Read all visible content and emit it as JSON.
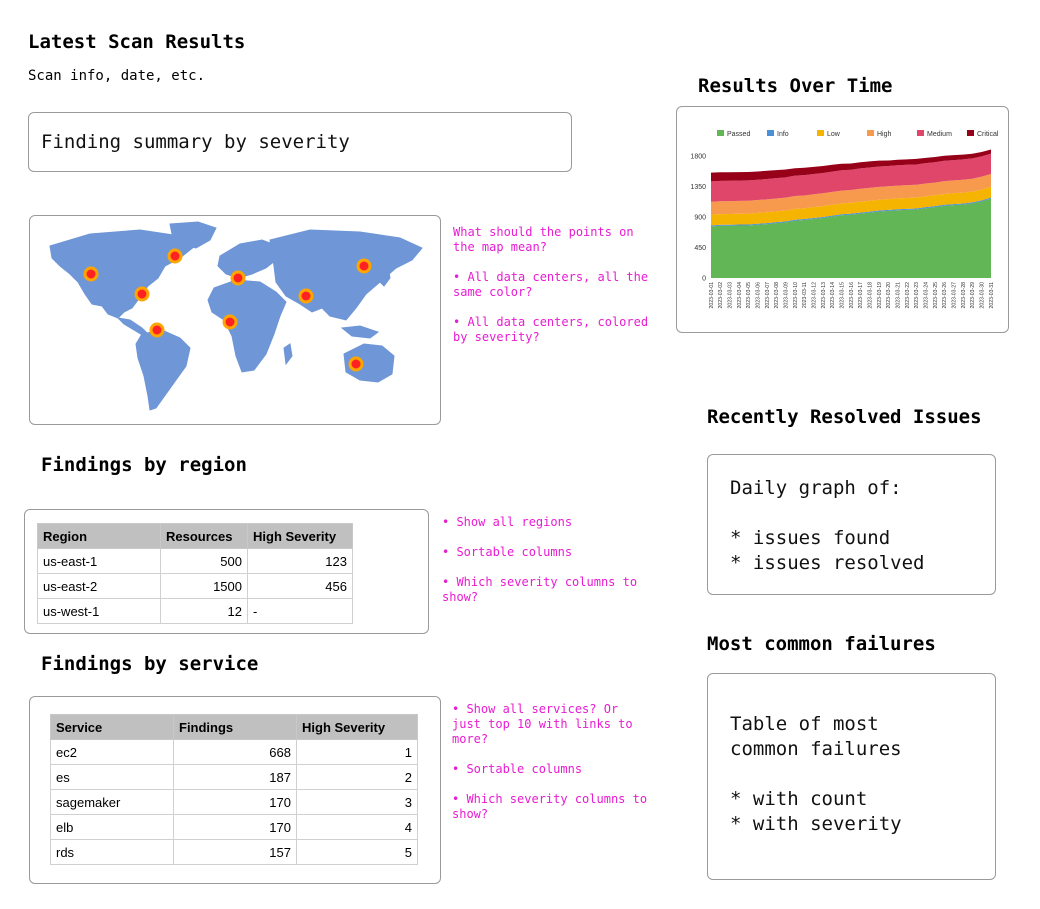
{
  "header": {
    "title": "Latest Scan Results",
    "subtitle": "Scan info, date, etc."
  },
  "summary_box": {
    "text": "Finding summary by severity"
  },
  "map_notes": [
    "What should the points on the map mean?",
    "• All data centers, all the same color?",
    "• All data centers, colored by severity?"
  ],
  "region_section": {
    "title": "Findings by region",
    "headers": [
      "Region",
      "Resources",
      "High Severity"
    ],
    "rows": [
      [
        "us-east-1",
        "500",
        "123"
      ],
      [
        "us-east-2",
        "1500",
        "456"
      ],
      [
        "us-west-1",
        "12",
        "-"
      ]
    ],
    "notes": [
      "• Show all regions",
      "• Sortable columns",
      "• Which severity columns to show?"
    ]
  },
  "service_section": {
    "title": "Findings by service",
    "headers": [
      "Service",
      "Findings",
      "High Severity"
    ],
    "rows": [
      [
        "ec2",
        "668",
        "1"
      ],
      [
        "es",
        "187",
        "2"
      ],
      [
        "sagemaker",
        "170",
        "3"
      ],
      [
        "elb",
        "170",
        "4"
      ],
      [
        "rds",
        "157",
        "5"
      ]
    ],
    "notes": [
      "• Show all services? Or just top 10 with links to more?",
      "• Sortable columns",
      "• Which severity columns to show?"
    ]
  },
  "over_time": {
    "title": "Results Over Time"
  },
  "resolved": {
    "title": "Recently Resolved Issues",
    "text": "Daily graph of:\n\n* issues found\n* issues resolved"
  },
  "failures": {
    "title": "Most common failures",
    "text": "Table of most\ncommon failures\n\n* with count\n* with severity"
  },
  "chart_data": {
    "type": "area",
    "stacked": true,
    "legend_position": "top",
    "ylim": [
      0,
      1800
    ],
    "yticks": [
      "0",
      "450",
      "900",
      "1350",
      "1800"
    ],
    "x": [
      "2023-03-01",
      "2023-03-02",
      "2023-03-03",
      "2023-03-04",
      "2023-03-05",
      "2023-03-06",
      "2023-03-07",
      "2023-03-08",
      "2023-03-09",
      "2023-03-10",
      "2023-03-11",
      "2023-03-12",
      "2023-03-13",
      "2023-03-14",
      "2023-03-15",
      "2023-03-16",
      "2023-03-17",
      "2023-03-18",
      "2023-03-19",
      "2023-03-20",
      "2023-03-21",
      "2023-03-22",
      "2023-03-23",
      "2023-03-24",
      "2023-03-25",
      "2023-03-26",
      "2023-03-27",
      "2023-03-28",
      "2023-03-29",
      "2023-03-30",
      "2023-03-31"
    ],
    "series": [
      {
        "name": "Passed",
        "color": "#62b656",
        "values": [
          760,
          770,
          770,
          775,
          775,
          785,
          795,
          810,
          820,
          845,
          855,
          870,
          885,
          905,
          925,
          935,
          950,
          965,
          980,
          990,
          1000,
          1005,
          1010,
          1030,
          1045,
          1065,
          1075,
          1085,
          1100,
          1130,
          1170
        ]
      },
      {
        "name": "Info",
        "color": "#4a90d9",
        "values": [
          15,
          15,
          15,
          15,
          15,
          15,
          15,
          15,
          15,
          15,
          15,
          15,
          15,
          15,
          15,
          15,
          15,
          15,
          15,
          15,
          15,
          15,
          15,
          15,
          15,
          15,
          15,
          15,
          15,
          15,
          15
        ]
      },
      {
        "name": "Low",
        "color": "#f5b400",
        "values": [
          160,
          158,
          160,
          158,
          160,
          160,
          160,
          158,
          160,
          160,
          160,
          160,
          160,
          160,
          160,
          160,
          162,
          160,
          160,
          158,
          160,
          160,
          160,
          160,
          160,
          160,
          160,
          160,
          160,
          160,
          160
        ]
      },
      {
        "name": "High",
        "color": "#f79a4e",
        "values": [
          190,
          190,
          190,
          190,
          190,
          190,
          190,
          190,
          190,
          190,
          188,
          190,
          190,
          190,
          190,
          188,
          190,
          190,
          190,
          190,
          188,
          190,
          190,
          190,
          188,
          190,
          190,
          190,
          190,
          190,
          190
        ]
      },
      {
        "name": "Medium",
        "color": "#e0456a",
        "values": [
          300,
          300,
          300,
          300,
          300,
          300,
          300,
          300,
          300,
          300,
          300,
          300,
          300,
          300,
          300,
          300,
          300,
          300,
          300,
          300,
          300,
          300,
          300,
          300,
          300,
          300,
          300,
          300,
          300,
          300,
          300
        ]
      },
      {
        "name": "Critical",
        "color": "#960018",
        "values": [
          130,
          128,
          126,
          124,
          124,
          122,
          122,
          118,
          116,
          110,
          108,
          104,
          102,
          100,
          96,
          92,
          90,
          90,
          86,
          80,
          82,
          80,
          82,
          78,
          78,
          74,
          72,
          70,
          68,
          64,
          60
        ]
      }
    ]
  }
}
